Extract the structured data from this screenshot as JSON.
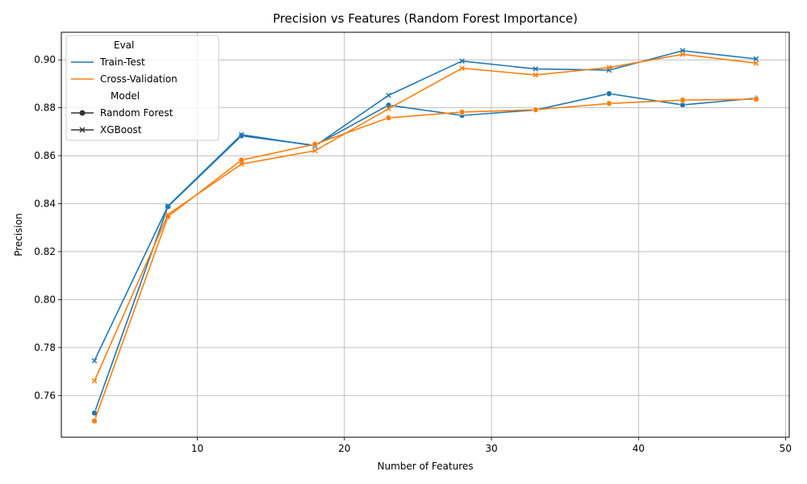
{
  "chart_data": {
    "type": "line",
    "title": "Precision vs Features (Random Forest Importance)",
    "xlabel": "Number of Features",
    "ylabel": "Precision",
    "xlim": [
      0.75,
      50.25
    ],
    "ylim": [
      0.7426,
      0.9115
    ],
    "xticks": [
      10,
      20,
      30,
      40,
      50
    ],
    "yticks": [
      0.76,
      0.78,
      0.8,
      0.82,
      0.84,
      0.86,
      0.88,
      0.9
    ],
    "x_tick_labels": [
      "10",
      "20",
      "30",
      "40",
      "50"
    ],
    "y_tick_labels": [
      "0.76",
      "0.78",
      "0.80",
      "0.82",
      "0.84",
      "0.86",
      "0.88",
      "0.90"
    ],
    "grid": true,
    "legend_position": "top-left",
    "legend": {
      "hue_title": "Eval",
      "style_title": "Model",
      "hue_entries": [
        {
          "label": "Train-Test",
          "color": "#1f77b4"
        },
        {
          "label": "Cross-Validation",
          "color": "#ff7f0e"
        }
      ],
      "style_entries": [
        {
          "label": "Random Forest",
          "marker": "circle"
        },
        {
          "label": "XGBoost",
          "marker": "x"
        }
      ]
    },
    "x": [
      3,
      8,
      13,
      18,
      23,
      28,
      33,
      38,
      43,
      48
    ],
    "series": [
      {
        "eval": "Train-Test",
        "model": "Random Forest",
        "color": "#1f77b4",
        "marker": "circle",
        "values": [
          0.7527,
          0.8388,
          0.8683,
          0.8643,
          0.8811,
          0.8768,
          0.8791,
          0.8859,
          0.8812,
          0.884
        ]
      },
      {
        "eval": "Train-Test",
        "model": "XGBoost",
        "color": "#1f77b4",
        "marker": "x",
        "values": [
          0.7745,
          0.839,
          0.8688,
          0.8641,
          0.8852,
          0.8995,
          0.8962,
          0.8957,
          0.9038,
          0.9004
        ]
      },
      {
        "eval": "Cross-Validation",
        "model": "Random Forest",
        "color": "#ff7f0e",
        "marker": "circle",
        "values": [
          0.7494,
          0.8346,
          0.8582,
          0.8648,
          0.8758,
          0.8782,
          0.8792,
          0.8818,
          0.8832,
          0.8836
        ]
      },
      {
        "eval": "Cross-Validation",
        "model": "XGBoost",
        "color": "#ff7f0e",
        "marker": "x",
        "values": [
          0.7661,
          0.8355,
          0.8565,
          0.8621,
          0.8796,
          0.8965,
          0.8937,
          0.8968,
          0.9023,
          0.8986
        ]
      }
    ]
  }
}
